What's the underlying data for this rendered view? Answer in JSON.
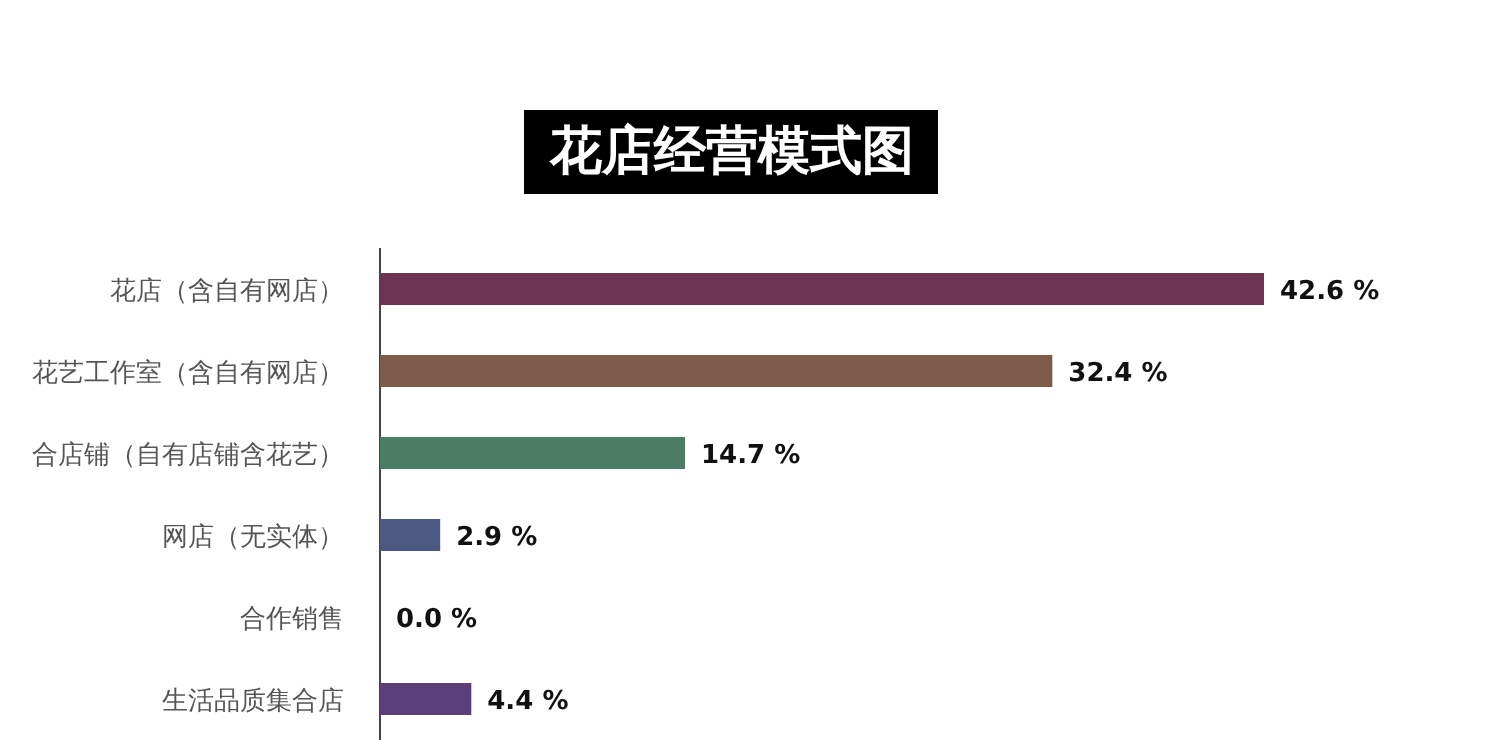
{
  "chart_data": {
    "type": "bar",
    "orientation": "horizontal",
    "title": "花店经营模式图",
    "categories": [
      "花店（含自有网店）",
      "花艺工作室（含自有网店）",
      "合店铺（自有店铺含花艺）",
      "网店（无实体）",
      "合作销售",
      "生活品质集合店"
    ],
    "values": [
      42.6,
      32.4,
      14.7,
      2.9,
      0.0,
      4.4
    ],
    "colors": [
      "#6b3552",
      "#7d5b4a",
      "#4b7d66",
      "#4a5a80",
      "#7a7a7a",
      "#5b3f7a"
    ],
    "value_labels": [
      "42.6 %",
      "32.4 %",
      "14.7 %",
      "2.9 %",
      "0.0 %",
      "4.4 %"
    ]
  }
}
